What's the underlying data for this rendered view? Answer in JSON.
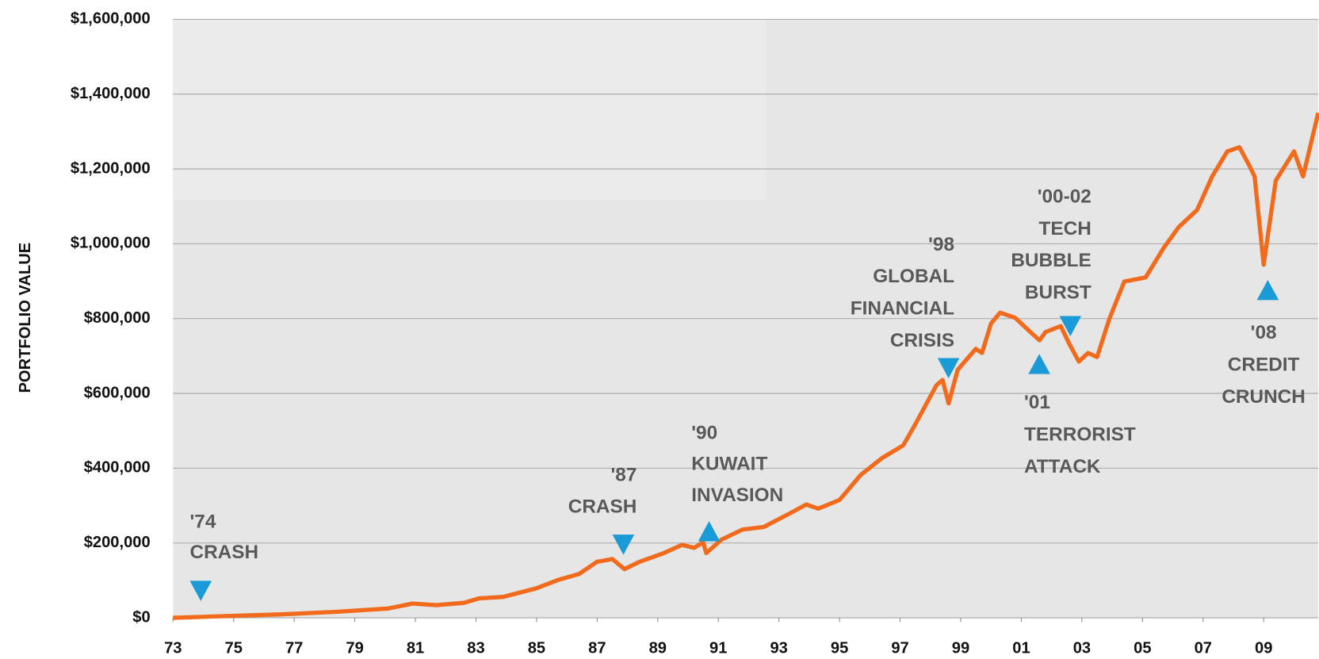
{
  "chart_data": {
    "type": "line",
    "y_axis_label": "PORTFOLIO VALUE",
    "xlim": [
      1973,
      2010.8
    ],
    "ylim": [
      0,
      1600000
    ],
    "xticks": [
      {
        "value": 1973,
        "label": "73"
      },
      {
        "value": 1975,
        "label": "75"
      },
      {
        "value": 1977,
        "label": "77"
      },
      {
        "value": 1979,
        "label": "79"
      },
      {
        "value": 1981,
        "label": "81"
      },
      {
        "value": 1983,
        "label": "83"
      },
      {
        "value": 1985,
        "label": "85"
      },
      {
        "value": 1987,
        "label": "87"
      },
      {
        "value": 1989,
        "label": "89"
      },
      {
        "value": 1991,
        "label": "91"
      },
      {
        "value": 1993,
        "label": "93"
      },
      {
        "value": 1995,
        "label": "95"
      },
      {
        "value": 1997,
        "label": "97"
      },
      {
        "value": 1999,
        "label": "99"
      },
      {
        "value": 2001,
        "label": "01"
      },
      {
        "value": 2003,
        "label": "03"
      },
      {
        "value": 2005,
        "label": "05"
      },
      {
        "value": 2007,
        "label": "07"
      },
      {
        "value": 2009,
        "label": "09"
      }
    ],
    "yticks": [
      {
        "value": 0,
        "label": "$0"
      },
      {
        "value": 200000,
        "label": "$200,000"
      },
      {
        "value": 400000,
        "label": "$400,000"
      },
      {
        "value": 600000,
        "label": "$600,000"
      },
      {
        "value": 800000,
        "label": "$800,000"
      },
      {
        "value": 1000000,
        "label": "$1,000,000"
      },
      {
        "value": 1200000,
        "label": "$1,200,000"
      },
      {
        "value": 1400000,
        "label": "$1,400,000"
      },
      {
        "value": 1600000,
        "label": "$1,600,000"
      }
    ],
    "grid": true,
    "series": [
      {
        "name": "Portfolio value",
        "color": "#f26b1d",
        "x": [
          1973,
          1974.5,
          1976.5,
          1978.4,
          1980.1,
          1980.9,
          1981.7,
          1982.6,
          1983.1,
          1983.9,
          1985.0,
          1985.7,
          1986.4,
          1987.0,
          1987.5,
          1987.9,
          1988.4,
          1989.2,
          1989.8,
          1990.2,
          1990.5,
          1990.6,
          1991.1,
          1991.8,
          1992.5,
          1993.4,
          1993.9,
          1994.3,
          1995.0,
          1995.7,
          1996.4,
          1997.1,
          1997.5,
          1997.8,
          1998.2,
          1998.4,
          1998.6,
          1998.9,
          1999.5,
          1999.7,
          2000.0,
          2000.3,
          2000.8,
          2001.3,
          2001.6,
          2001.8,
          2002.3,
          2002.6,
          2002.9,
          2003.2,
          2003.5,
          2003.9,
          2004.4,
          2005.1,
          2005.7,
          2006.2,
          2006.8,
          2007.3,
          2007.8,
          2008.2,
          2008.5,
          2008.7,
          2009.0,
          2009.4,
          2010.0,
          2010.3,
          2010.8
        ],
        "values": [
          0,
          4000,
          9000,
          16000,
          25000,
          38000,
          34000,
          40000,
          52000,
          56000,
          79000,
          101000,
          117000,
          150000,
          157000,
          130000,
          150000,
          173000,
          195000,
          187000,
          202000,
          173000,
          209000,
          236000,
          243000,
          281000,
          303000,
          292000,
          315000,
          382000,
          427000,
          461000,
          517000,
          562000,
          622000,
          636000,
          573000,
          663000,
          719000,
          708000,
          787000,
          816000,
          802000,
          764000,
          742000,
          764000,
          780000,
          730000,
          685000,
          708000,
          697000,
          798000,
          899000,
          910000,
          989000,
          1045000,
          1090000,
          1180000,
          1247000,
          1258000,
          1213000,
          1180000,
          944000,
          1169000,
          1247000,
          1180000,
          1350000
        ]
      }
    ],
    "annotations": [
      {
        "lines": [
          "'74",
          "CRASH"
        ]
      },
      {
        "lines": [
          "'87",
          "CRASH"
        ]
      },
      {
        "lines": [
          "'90",
          "KUWAIT",
          "INVASION"
        ]
      },
      {
        "lines": [
          "'98",
          "GLOBAL",
          "FINANCIAL",
          "CRISIS"
        ]
      },
      {
        "lines": [
          "'00-02",
          "TECH",
          "BUBBLE",
          "BURST"
        ]
      },
      {
        "lines": [
          "'01",
          "TERRORIST",
          "ATTACK"
        ]
      },
      {
        "lines": [
          "'08",
          "CREDIT",
          "CRUNCH"
        ]
      }
    ]
  }
}
